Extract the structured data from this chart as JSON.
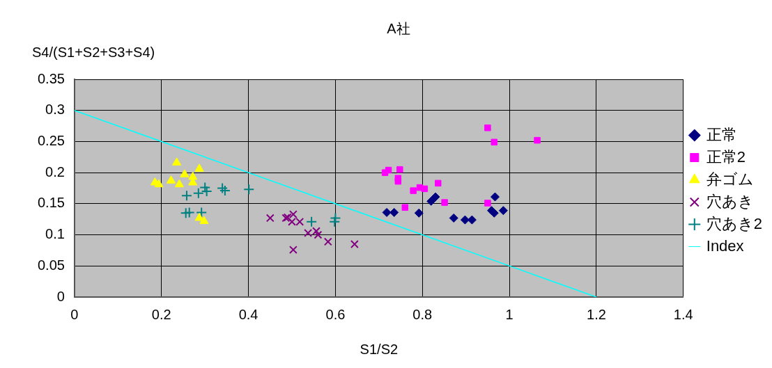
{
  "chart_data": {
    "type": "scatter",
    "title": "A社",
    "xlabel": "S1/S2",
    "ylabel": "S4/(S1+S2+S3+S4)",
    "xlim": [
      0,
      1.4
    ],
    "xticks": [
      0,
      0.2,
      0.4,
      0.6,
      0.8,
      1,
      1.2,
      1.4
    ],
    "ylim": [
      0,
      0.35
    ],
    "yticks": [
      0,
      0.05,
      0.1,
      0.15,
      0.2,
      0.25,
      0.3,
      0.35
    ],
    "grid": true,
    "legend": "right",
    "series": [
      {
        "name": "正常",
        "color": "#000080",
        "marker": "diamond",
        "x": [
          0.718,
          0.735,
          0.792,
          0.82,
          0.83,
          0.872,
          0.898,
          0.914,
          0.967,
          0.959,
          0.965,
          0.986
        ],
        "values": [
          0.136,
          0.136,
          0.135,
          0.154,
          0.161,
          0.127,
          0.124,
          0.124,
          0.161,
          0.139,
          0.135,
          0.139
        ]
      },
      {
        "name": "正常2",
        "color": "#ff00ff",
        "marker": "square",
        "x": [
          0.95,
          0.965,
          0.714,
          0.722,
          0.748,
          0.744,
          0.744,
          0.779,
          0.794,
          0.805,
          0.836,
          0.851,
          0.76,
          0.95,
          1.064
        ],
        "values": [
          0.272,
          0.249,
          0.2,
          0.204,
          0.205,
          0.191,
          0.186,
          0.171,
          0.176,
          0.174,
          0.183,
          0.152,
          0.144,
          0.151,
          0.252
        ]
      },
      {
        "name": "弁ゴム",
        "color": "#ffff00",
        "marker": "triangle",
        "x": [
          0.185,
          0.194,
          0.222,
          0.241,
          0.235,
          0.253,
          0.272,
          0.272,
          0.287,
          0.287,
          0.298
        ],
        "values": [
          0.184,
          0.181,
          0.187,
          0.181,
          0.216,
          0.197,
          0.193,
          0.184,
          0.206,
          0.127,
          0.122
        ]
      },
      {
        "name": "穴あき",
        "color": "#800080",
        "marker": "cross",
        "x": [
          0.45,
          0.486,
          0.503,
          0.5,
          0.518,
          0.537,
          0.556,
          0.56,
          0.583,
          0.503,
          0.644,
          0.49
        ],
        "values": [
          0.127,
          0.127,
          0.133,
          0.121,
          0.121,
          0.103,
          0.106,
          0.1,
          0.089,
          0.076,
          0.085,
          0.128
        ]
      },
      {
        "name": "穴あき2",
        "color": "#008080",
        "marker": "cross",
        "x": [
          0.258,
          0.285,
          0.3,
          0.304,
          0.34,
          0.346,
          0.401,
          0.256,
          0.264,
          0.292,
          0.545,
          0.6,
          0.598
        ],
        "values": [
          0.163,
          0.167,
          0.176,
          0.17,
          0.175,
          0.171,
          0.173,
          0.135,
          0.136,
          0.136,
          0.121,
          0.127,
          0.121
        ]
      },
      {
        "name": "Index",
        "color": "#00ffff",
        "type": "line",
        "marker": "none",
        "x": [
          0,
          1.2
        ],
        "values": [
          0.3,
          0
        ]
      }
    ]
  }
}
